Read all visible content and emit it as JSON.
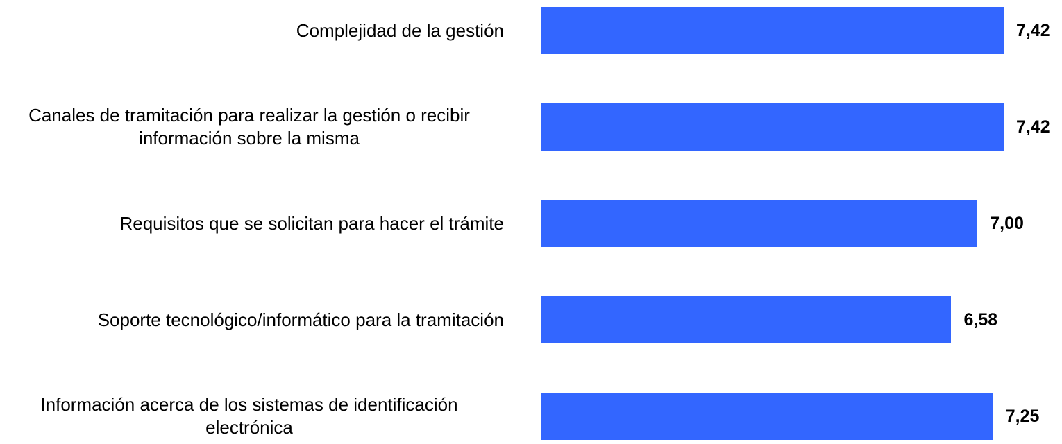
{
  "chart_data": {
    "type": "bar",
    "orientation": "horizontal",
    "categories": [
      "Complejidad de la gestión",
      "Canales de tramitación para realizar la gestión o recibir información sobre la misma",
      "Requisitos que se solicitan para hacer el trámite",
      "Soporte tecnológico/informático para la tramitación",
      "Información acerca de los sistemas de identificación electrónica"
    ],
    "values": [
      7.42,
      7.42,
      7.0,
      6.58,
      7.25
    ],
    "value_labels": [
      "7,42",
      "7,42",
      "7,00",
      "6,58",
      "7,25"
    ],
    "color": "#3366ff"
  }
}
